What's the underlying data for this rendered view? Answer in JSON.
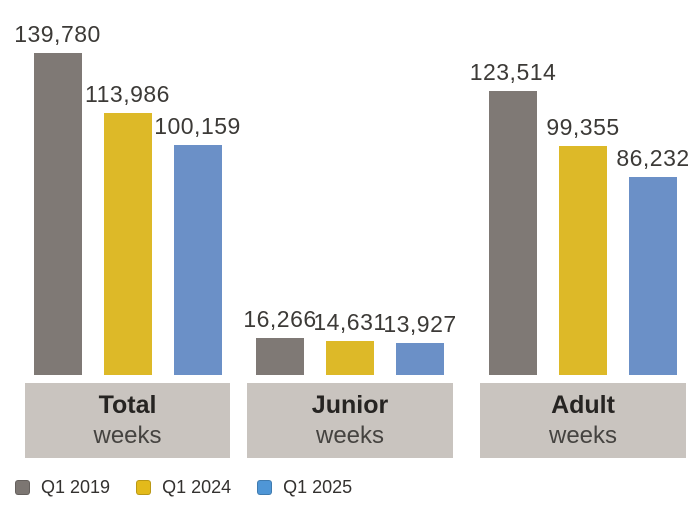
{
  "chart_data": {
    "type": "bar",
    "title": "",
    "categories": [
      {
        "title": "Total",
        "subtitle": "weeks"
      },
      {
        "title": "Junior",
        "subtitle": "weeks"
      },
      {
        "title": "Adult",
        "subtitle": "weeks"
      }
    ],
    "series": [
      {
        "name": "Q1 2019",
        "color": "#7f7975",
        "values": [
          139780,
          16266,
          123514
        ],
        "labels": [
          "139,780",
          "16,266",
          "123,514"
        ]
      },
      {
        "name": "Q1 2024",
        "color": "#ddb928",
        "values": [
          113986,
          14631,
          99355
        ],
        "labels": [
          "113,986",
          "14,631",
          "99,355"
        ]
      },
      {
        "name": "Q1 2025",
        "color": "#6b90c7",
        "values": [
          100159,
          13927,
          86232
        ],
        "labels": [
          "100,159",
          "13,927",
          "86,232"
        ]
      }
    ],
    "ylim": [
      0,
      163000
    ],
    "grid": false,
    "axes_visible": false,
    "value_labels_visible": true,
    "legend_position": "bottom-left"
  },
  "legend": {
    "items": [
      {
        "label": "Q1 2019",
        "color": "#7c7672"
      },
      {
        "label": "Q1 2024",
        "color": "#e3ba1a"
      },
      {
        "label": "Q1 2025",
        "color": "#4f96d6"
      }
    ]
  },
  "colors": {
    "background": "#ffffff",
    "category_box": "#c9c4bf",
    "value_label_text": "#3c3a37",
    "category_title_text": "#262422",
    "category_subtitle_text": "#454340",
    "legend_text": "#33312f"
  }
}
